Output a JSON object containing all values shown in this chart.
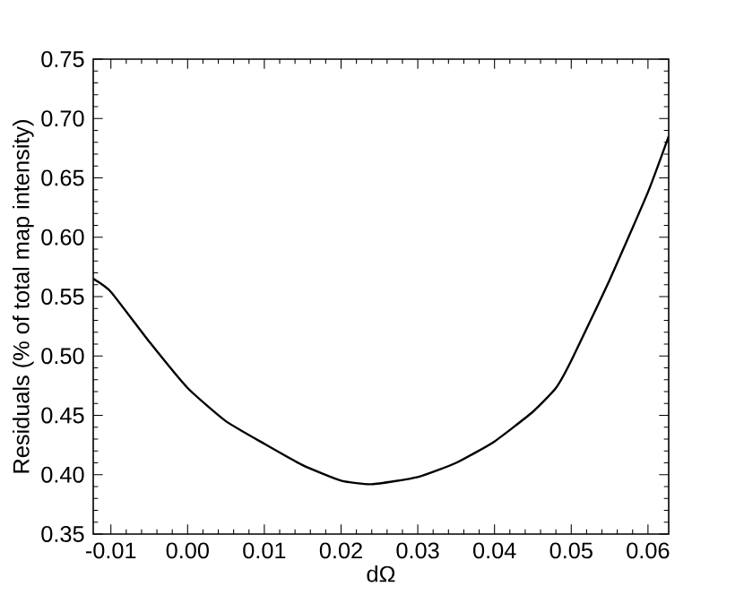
{
  "chart_data": {
    "type": "line",
    "xlabel": "dΩ",
    "ylabel": "Residuals (% of total map intensity)",
    "x": [
      -0.0123,
      -0.01,
      -0.005,
      0.0,
      0.005,
      0.01,
      0.015,
      0.02,
      0.024,
      0.03,
      0.035,
      0.04,
      0.045,
      0.048,
      0.05,
      0.055,
      0.06,
      0.0627
    ],
    "series": [
      {
        "color": "#000000",
        "values": [
          0.565,
          0.554,
          0.512,
          0.473,
          0.445,
          0.426,
          0.408,
          0.395,
          0.392,
          0.398,
          0.41,
          0.428,
          0.453,
          0.473,
          0.496,
          0.564,
          0.638,
          0.685
        ]
      }
    ],
    "xlim": [
      -0.0123,
      0.0627
    ],
    "xticks": [
      -0.01,
      {
        "value": 0.0,
        "label": "0.00"
      },
      0.01,
      0.02,
      0.03,
      0.04,
      0.05,
      0.06
    ],
    "ylim": [
      0.35,
      0.75
    ],
    "yticks": [
      0.35,
      {
        "value": 0.4,
        "label": "0.40"
      },
      0.45,
      {
        "value": 0.5,
        "label": "0.50"
      },
      0.55,
      {
        "value": 0.6,
        "label": "0.60"
      },
      0.65,
      {
        "value": 0.7,
        "label": "0.70"
      },
      0.75
    ],
    "grid": false,
    "legend": false,
    "marker": "none",
    "line_style": "solid"
  }
}
